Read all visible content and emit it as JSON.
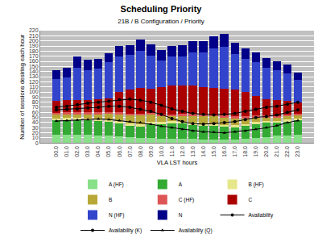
{
  "chart_data": {
    "type": "bar",
    "title": "Scheduling Priority",
    "subtitle": "21B / B Configuration / Priority",
    "x_label": "VLA LST hours",
    "y_label": "Number of sessions desiring each hour",
    "categories": [
      "00.0",
      "01.0",
      "02.0",
      "03.0",
      "04.0",
      "05.0",
      "06.0",
      "07.0",
      "08.0",
      "09.0",
      "10.0",
      "11.0",
      "12.0",
      "13.0",
      "14.0",
      "15.0",
      "16.0",
      "17.0",
      "18.0",
      "19.0",
      "20.0",
      "21.0",
      "22.0",
      "23.0"
    ],
    "stacked": true,
    "grid": true,
    "legend": "bottom",
    "ylim": [
      0,
      220
    ],
    "yticks": [
      0,
      10,
      20,
      30,
      40,
      50,
      60,
      70,
      80,
      90,
      100,
      110,
      120,
      130,
      140,
      150,
      160,
      170,
      180,
      190,
      200,
      210,
      220
    ],
    "series": [
      {
        "name": "A (HF)",
        "color": "#88e088",
        "values": [
          17,
          17,
          16,
          16,
          15,
          14,
          13,
          11,
          10,
          10,
          9,
          9,
          8,
          8,
          7,
          7,
          7,
          7,
          8,
          10,
          12,
          14,
          15,
          16
        ]
      },
      {
        "name": "A",
        "color": "#33aa33",
        "values": [
          28,
          29,
          30,
          29,
          28,
          28,
          26,
          23,
          22,
          27,
          28,
          30,
          30,
          28,
          26,
          26,
          25,
          24,
          26,
          28,
          28,
          26,
          28,
          29
        ]
      },
      {
        "name": "B (HF)",
        "color": "#e6e68a",
        "values": [
          3,
          3,
          3,
          3,
          4,
          4,
          4,
          5,
          5,
          5,
          4,
          4,
          4,
          4,
          4,
          4,
          4,
          4,
          3,
          3,
          3,
          3,
          3,
          3
        ]
      },
      {
        "name": "B",
        "color": "#b8a838",
        "values": [
          8,
          8,
          8,
          9,
          10,
          12,
          14,
          16,
          18,
          14,
          12,
          10,
          12,
          14,
          16,
          16,
          15,
          14,
          12,
          10,
          8,
          7,
          7,
          7
        ]
      },
      {
        "name": "C (HF)",
        "color": "#dd5555",
        "values": [
          3,
          3,
          3,
          3,
          3,
          3,
          3,
          3,
          3,
          3,
          3,
          3,
          3,
          3,
          3,
          3,
          3,
          3,
          3,
          3,
          3,
          3,
          3,
          3
        ]
      },
      {
        "name": "C",
        "color": "#aa0000",
        "values": [
          24,
          24,
          25,
          25,
          26,
          27,
          40,
          46,
          50,
          48,
          54,
          57,
          56,
          55,
          54,
          52,
          52,
          52,
          48,
          38,
          32,
          31,
          26,
          22
        ]
      },
      {
        "name": "N (HF)",
        "color": "#3344cc",
        "values": [
          43,
          45,
          63,
          58,
          60,
          70,
          70,
          68,
          73,
          64,
          52,
          57,
          57,
          65,
          68,
          77,
          83,
          70,
          65,
          66,
          61,
          58,
          55,
          44
        ]
      },
      {
        "name": "N",
        "color": "#000088",
        "values": [
          16,
          18,
          22,
          20,
          18,
          18,
          20,
          20,
          22,
          22,
          20,
          20,
          22,
          22,
          22,
          24,
          25,
          22,
          20,
          20,
          20,
          18,
          16,
          14
        ]
      },
      {
        "name": "Availability",
        "type": "line",
        "color": "#000000",
        "marker": "circle",
        "line_style": "solid",
        "values": [
          70,
          72,
          75,
          78,
          80,
          82,
          85,
          86,
          84,
          80,
          74,
          67,
          62,
          58,
          56,
          55,
          56,
          58,
          62,
          66,
          70,
          72,
          76,
          80
        ]
      },
      {
        "name": "Availability (K)",
        "type": "line",
        "color": "#000000",
        "marker": "circle",
        "line_style": "solid",
        "values": [
          65,
          66,
          67,
          69,
          70,
          72,
          72,
          70,
          66,
          62,
          56,
          48,
          42,
          38,
          37,
          38,
          40,
          42,
          46,
          50,
          52,
          55,
          60,
          65
        ]
      },
      {
        "name": "Availability (Q)",
        "type": "line",
        "color": "#000000",
        "marker": "triangle-up",
        "line_style": "solid",
        "values": [
          43,
          44,
          45,
          46,
          47,
          46,
          44,
          42,
          40,
          37,
          33,
          30,
          27,
          24,
          22,
          21,
          20,
          22,
          24,
          27,
          30,
          34,
          40,
          44
        ]
      }
    ]
  }
}
